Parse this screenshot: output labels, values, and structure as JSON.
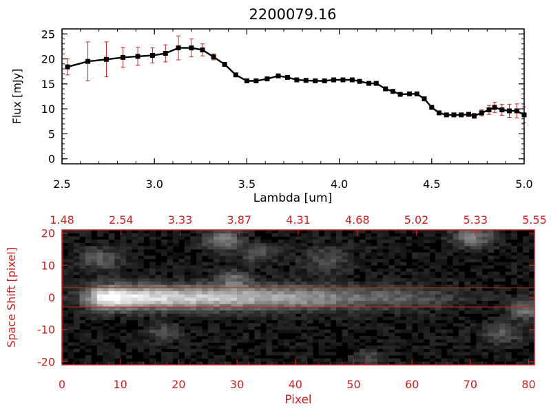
{
  "chart_data": [
    {
      "type": "line",
      "title": "2200079.16",
      "xlabel": "Lambda [um]",
      "ylabel": "Flux [mJy]",
      "xlim": [
        2.5,
        5.0
      ],
      "ylim": [
        -1,
        26
      ],
      "x_ticks": [
        "2.5",
        "3.0",
        "3.5",
        "4.0",
        "4.5",
        "5.0"
      ],
      "y_ticks": [
        "0",
        "5",
        "10",
        "15",
        "20",
        "25"
      ],
      "colors": {
        "line": "#000000",
        "marker": "#000000",
        "error_bar": "#cc2020"
      },
      "series": [
        {
          "x": [
            2.53,
            2.64,
            2.74,
            2.83,
            2.91,
            2.99,
            3.06,
            3.13,
            3.2,
            3.26,
            3.32,
            3.38,
            3.44,
            3.5,
            3.55,
            3.61,
            3.67,
            3.72,
            3.77,
            3.82,
            3.87,
            3.92,
            3.97,
            4.02,
            4.07,
            4.11,
            4.16,
            4.2,
            4.25,
            4.29,
            4.33,
            4.38,
            4.42,
            4.46,
            4.5,
            4.54,
            4.58,
            4.62,
            4.66,
            4.7,
            4.73,
            4.77,
            4.81,
            4.84,
            4.88,
            4.92,
            4.96,
            5.0
          ],
          "y": [
            18.4,
            19.5,
            19.9,
            20.3,
            20.5,
            20.7,
            21.1,
            22.2,
            22.2,
            21.8,
            20.4,
            18.9,
            16.8,
            15.6,
            15.6,
            16.0,
            16.6,
            16.3,
            15.8,
            15.7,
            15.6,
            15.6,
            15.8,
            15.8,
            15.8,
            15.5,
            15.1,
            15.1,
            14.0,
            13.5,
            12.9,
            13.0,
            13.0,
            12.0,
            10.3,
            9.2,
            8.8,
            8.8,
            8.8,
            8.9,
            8.6,
            9.2,
            9.8,
            10.3,
            9.8,
            9.6,
            9.6,
            8.8
          ],
          "error": [
            1.6,
            3.9,
            3.5,
            2.0,
            1.8,
            1.5,
            1.7,
            2.4,
            1.8,
            1.2,
            0.6,
            0.4,
            0.3,
            0.3,
            0.3,
            0.3,
            0.3,
            0.3,
            0.3,
            0.3,
            0.3,
            0.3,
            0.3,
            0.3,
            0.3,
            0.3,
            0.3,
            0.3,
            0.3,
            0.3,
            0.3,
            0.3,
            0.3,
            0.4,
            0.4,
            0.4,
            0.3,
            0.3,
            0.3,
            0.4,
            0.5,
            0.6,
            0.9,
            1.0,
            1.1,
            1.3,
            1.4,
            1.6
          ]
        }
      ]
    },
    {
      "type": "heatmap",
      "xlabel": "Pixel",
      "ylabel": "Space Shift [pixel]",
      "xlim": [
        0,
        81
      ],
      "ylim": [
        -21,
        21
      ],
      "x_ticks": [
        "0",
        "10",
        "20",
        "30",
        "40",
        "50",
        "60",
        "70",
        "80"
      ],
      "y_ticks": [
        "-20",
        "-10",
        "0",
        "10",
        "20"
      ],
      "top_axis_ticks": [
        "1.48",
        "2.54",
        "3.33",
        "3.87",
        "4.31",
        "4.68",
        "5.02",
        "5.33",
        "5.55"
      ],
      "aperture": [
        -3,
        3
      ],
      "colors": {
        "axis": "#cc2020",
        "colormap": "grayscale",
        "aperture_lines": "#cc2020"
      },
      "trace": {
        "center_shift": 0,
        "peak_pixel": 9,
        "intensity_profile": [
          0.05,
          0.1,
          0.18,
          0.28,
          0.45,
          0.66,
          0.84,
          0.95,
          1.0,
          0.96,
          0.92,
          0.88,
          0.86,
          0.84,
          0.82,
          0.8,
          0.79,
          0.78,
          0.77,
          0.76,
          0.75,
          0.74,
          0.73,
          0.72,
          0.71,
          0.7,
          0.69,
          0.68,
          0.67,
          0.66,
          0.65,
          0.64,
          0.63,
          0.62,
          0.61,
          0.6,
          0.59,
          0.58,
          0.57,
          0.56,
          0.55,
          0.54,
          0.52,
          0.5,
          0.48,
          0.46,
          0.44,
          0.42,
          0.4,
          0.38,
          0.36,
          0.35,
          0.34,
          0.33,
          0.32,
          0.31,
          0.3,
          0.29,
          0.28,
          0.27,
          0.26,
          0.24,
          0.22,
          0.2,
          0.18,
          0.16,
          0.14,
          0.12,
          0.1,
          0.08,
          0.06,
          0.05,
          0.05,
          0.04,
          0.04,
          0.04,
          0.03,
          0.03,
          0.03,
          0.03,
          0.03
        ]
      }
    }
  ]
}
